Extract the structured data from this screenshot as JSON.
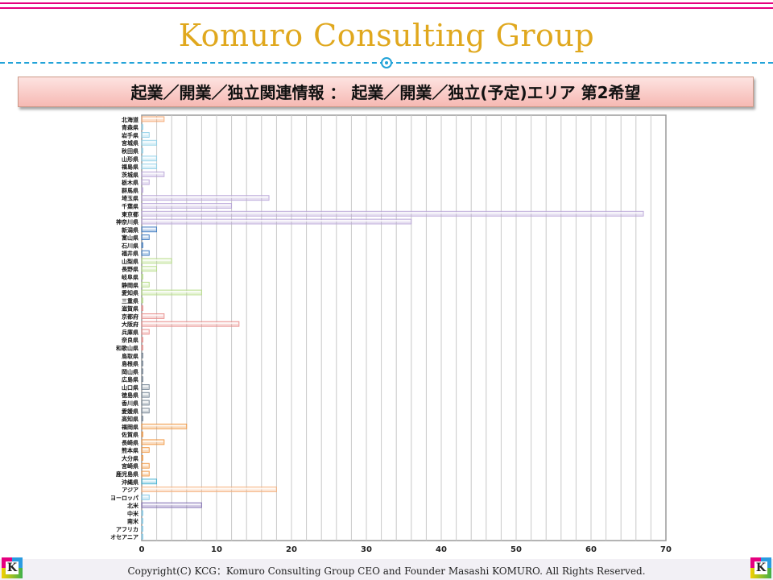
{
  "header": {
    "brand": "Komuro Consulting Group",
    "banner": "起業／開業／独立関連情報 ： 起業／開業／独立(予定)エリア 第2希望"
  },
  "footer": {
    "copyright": "Copyright(C) KCG：Komuro Consulting Group CEO and Founder Masashi KOMURO. All Rights Reserved.",
    "logo_letter": "K"
  },
  "colors": {
    "accent_pink": "#e5007f",
    "brand_gold": "#e0a81e",
    "divider_blue": "#22a3d8"
  },
  "chart_data": {
    "type": "bar",
    "orientation": "horizontal",
    "title": "",
    "xlabel": "",
    "ylabel": "",
    "xlim": [
      0,
      70
    ],
    "xticks": [
      0,
      10,
      20,
      30,
      40,
      50,
      60,
      70
    ],
    "grid": true,
    "categories": [
      "北海道",
      "青森県",
      "岩手県",
      "宮城県",
      "秋田県",
      "山形県",
      "福島県",
      "茨城県",
      "栃木県",
      "群馬県",
      "埼玉県",
      "千葉県",
      "東京都",
      "神奈川県",
      "新潟県",
      "富山県",
      "石川県",
      "福井県",
      "山梨県",
      "長野県",
      "岐阜県",
      "静岡県",
      "愛知県",
      "三重県",
      "滋賀県",
      "京都府",
      "大阪府",
      "兵庫県",
      "奈良県",
      "和歌山県",
      "鳥取県",
      "島根県",
      "岡山県",
      "広島県",
      "山口県",
      "徳島県",
      "香川県",
      "愛媛県",
      "高知県",
      "福岡県",
      "佐賀県",
      "長崎県",
      "熊本県",
      "大分県",
      "宮崎県",
      "鹿児島県",
      "沖縄県",
      "アジア",
      "ヨーロッパ",
      "北米",
      "中米",
      "南米",
      "アフリカ",
      "オセアニア"
    ],
    "values": [
      3,
      0,
      1,
      2,
      0,
      2,
      2,
      3,
      1,
      0,
      17,
      12,
      67,
      36,
      2,
      1,
      0,
      1,
      4,
      2,
      0,
      1,
      8,
      0,
      0,
      3,
      13,
      1,
      0,
      0,
      0,
      0,
      0,
      0,
      1,
      1,
      1,
      1,
      0,
      6,
      0,
      3,
      1,
      0,
      1,
      1,
      2,
      18,
      1,
      8,
      0,
      0,
      0,
      0
    ],
    "region_colors": [
      "#f5a36a",
      "#8fd0e8",
      "#8fd0e8",
      "#8fd0e8",
      "#8fd0e8",
      "#8fd0e8",
      "#8fd0e8",
      "#b8a4d8",
      "#b8a4d8",
      "#b8a4d8",
      "#b8a4d8",
      "#b8a4d8",
      "#b8a4d8",
      "#b8a4d8",
      "#3a78c0",
      "#3a78c0",
      "#3a78c0",
      "#3a78c0",
      "#b4dc84",
      "#b4dc84",
      "#b4dc84",
      "#b4dc84",
      "#b4dc84",
      "#b4dc84",
      "#e88a88",
      "#e88a88",
      "#e88a88",
      "#e88a88",
      "#e88a88",
      "#e88a88",
      "#708090",
      "#708090",
      "#708090",
      "#708090",
      "#708090",
      "#708090",
      "#708090",
      "#708090",
      "#708090",
      "#f0943c",
      "#f0943c",
      "#f0943c",
      "#f0943c",
      "#f0943c",
      "#f0943c",
      "#f0943c",
      "#3fb0d0",
      "#f5b07a",
      "#7ec7e6",
      "#7a66b0",
      "#7ec7e6",
      "#7ec7e6",
      "#7ec7e6",
      "#7ec7e6"
    ]
  }
}
